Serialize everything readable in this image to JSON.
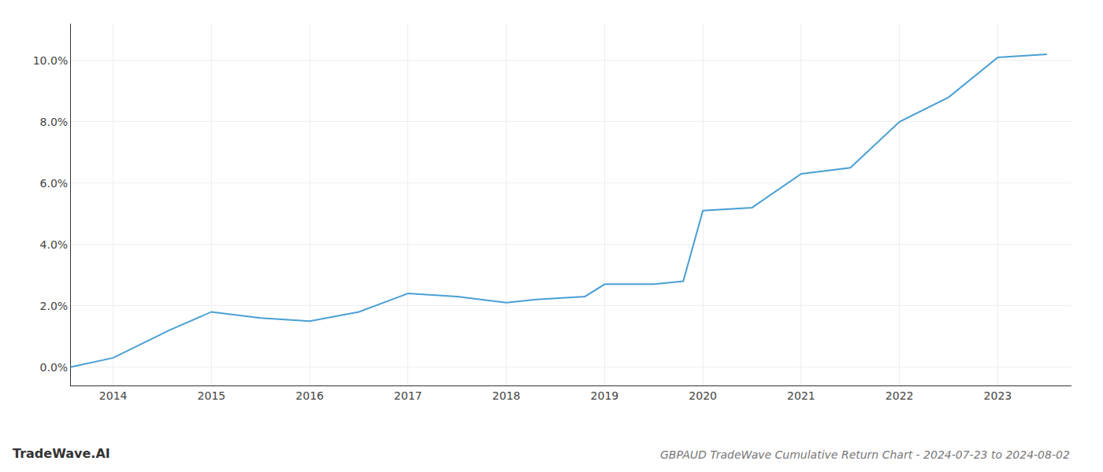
{
  "chart_data": {
    "type": "line",
    "title": "GBPAUD TradeWave Cumulative Return Chart - 2024-07-23 to 2024-08-02",
    "annotations": [
      {
        "text": "TradeWave.AI"
      }
    ],
    "x": [
      2013.57,
      2014.0,
      2014.57,
      2015.0,
      2015.5,
      2016.0,
      2016.5,
      2017.0,
      2017.5,
      2018.0,
      2018.3,
      2018.8,
      2019.0,
      2019.5,
      2019.8,
      2020.0,
      2020.5,
      2021.0,
      2021.5,
      2022.0,
      2022.5,
      2023.0,
      2023.5
    ],
    "values": [
      0.0,
      0.003,
      0.012,
      0.018,
      0.016,
      0.015,
      0.018,
      0.024,
      0.023,
      0.021,
      0.022,
      0.023,
      0.027,
      0.027,
      0.028,
      0.051,
      0.052,
      0.063,
      0.065,
      0.08,
      0.088,
      0.101,
      0.102
    ],
    "color": "#4a9fd4",
    "xlim": [
      2013.57,
      2023.75
    ],
    "xticks": [
      2014,
      2015,
      2016,
      2017,
      2018,
      2019,
      2020,
      2021,
      2022,
      2023
    ],
    "ylim": [
      -0.006,
      0.112
    ],
    "yticks": [
      {
        "value": 0.0,
        "label": "0.0%"
      },
      {
        "value": 0.02,
        "label": "2.0%"
      },
      {
        "value": 0.04,
        "label": "4.0%"
      },
      {
        "value": 0.06,
        "label": "6.0%"
      },
      {
        "value": 0.08,
        "label": "8.0%"
      },
      {
        "value": 0.1,
        "label": "10.0%"
      }
    ],
    "grid": true
  }
}
